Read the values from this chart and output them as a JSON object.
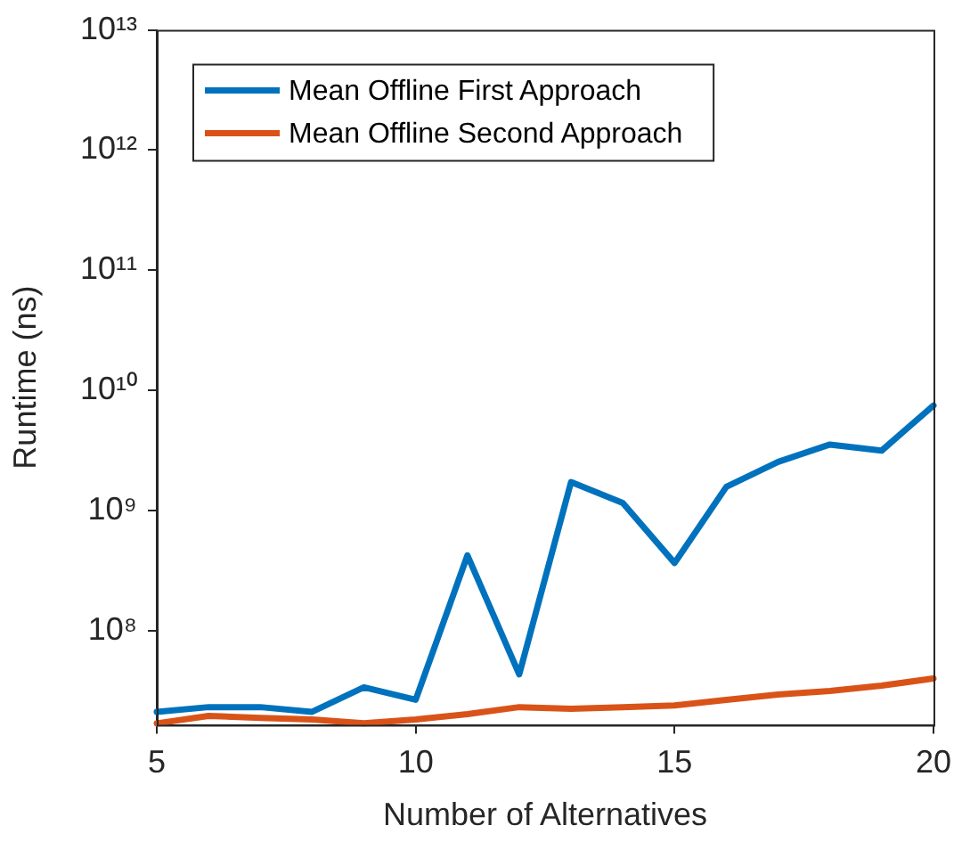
{
  "chart_data": {
    "type": "line",
    "xlabel": "Number of Alternatives",
    "ylabel": "Runtime (ns)",
    "x": [
      5,
      6,
      7,
      8,
      9,
      10,
      11,
      12,
      13,
      14,
      15,
      16,
      17,
      18,
      19,
      20
    ],
    "series": [
      {
        "name": "Mean Offline First Approach",
        "color": "#0072bd",
        "values": [
          21200000.0,
          23200000.0,
          23200000.0,
          21200000.0,
          33900000.0,
          26700000.0,
          425000000.0,
          43500000.0,
          1730000000.0,
          1160000000.0,
          367000000.0,
          1580000000.0,
          2550000000.0,
          3550000000.0,
          3160000000.0,
          7500000000.0
        ]
      },
      {
        "name": "Mean Offline Second Approach",
        "color": "#d95319",
        "values": [
          17000000.0,
          19600000.0,
          18900000.0,
          18300000.0,
          17000000.0,
          18300000.0,
          20300000.0,
          23200000.0,
          22500000.0,
          23200000.0,
          24000000.0,
          26700000.0,
          29500000.0,
          31600000.0,
          35000000.0,
          40200000.0
        ]
      }
    ],
    "xlim": [
      5,
      20
    ],
    "xticks": [
      5,
      10,
      15,
      20
    ],
    "ylim": [
      16500000.0,
      10000000000000.0
    ],
    "yticks": [
      {
        "value": 100000000.0,
        "label": "10⁸"
      },
      {
        "value": 1000000000.0,
        "label": "10⁹"
      },
      {
        "value": 10000000000.0,
        "label": "10¹⁰"
      },
      {
        "value": 100000000000.0,
        "label": "10¹¹"
      },
      {
        "value": 1000000000000.0,
        "label": "10¹²"
      },
      {
        "value": 10000000000000.0,
        "label": "10¹³"
      }
    ],
    "log": "y",
    "grid": false,
    "legend": "top left",
    "marker": "none",
    "line_style": "solid"
  }
}
